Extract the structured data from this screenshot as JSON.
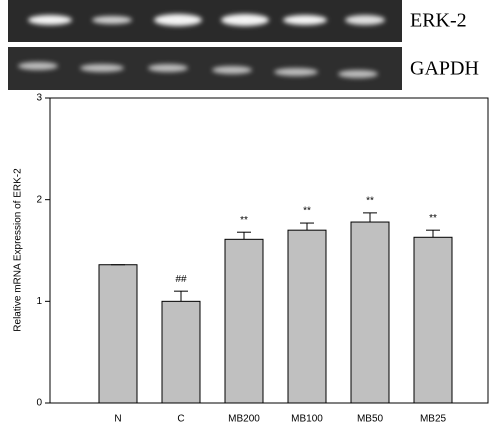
{
  "gel": {
    "labels": [
      "ERK-2",
      "GAPDH"
    ]
  },
  "chart_data": {
    "type": "bar",
    "ylabel": "Relative mRNA Expression of ERK-2",
    "categories": [
      "N",
      "C",
      "MB200",
      "MB100",
      "MB50",
      "MB25"
    ],
    "values": [
      1.36,
      1.0,
      1.61,
      1.7,
      1.78,
      1.63
    ],
    "errors": [
      0,
      0.1,
      0.07,
      0.07,
      0.09,
      0.07
    ],
    "annotations": [
      null,
      "##",
      "**",
      "**",
      "**",
      "**"
    ],
    "color": "#c0c0c0",
    "ylim": [
      0,
      3
    ],
    "yticks": [
      0,
      1,
      2,
      3
    ]
  }
}
